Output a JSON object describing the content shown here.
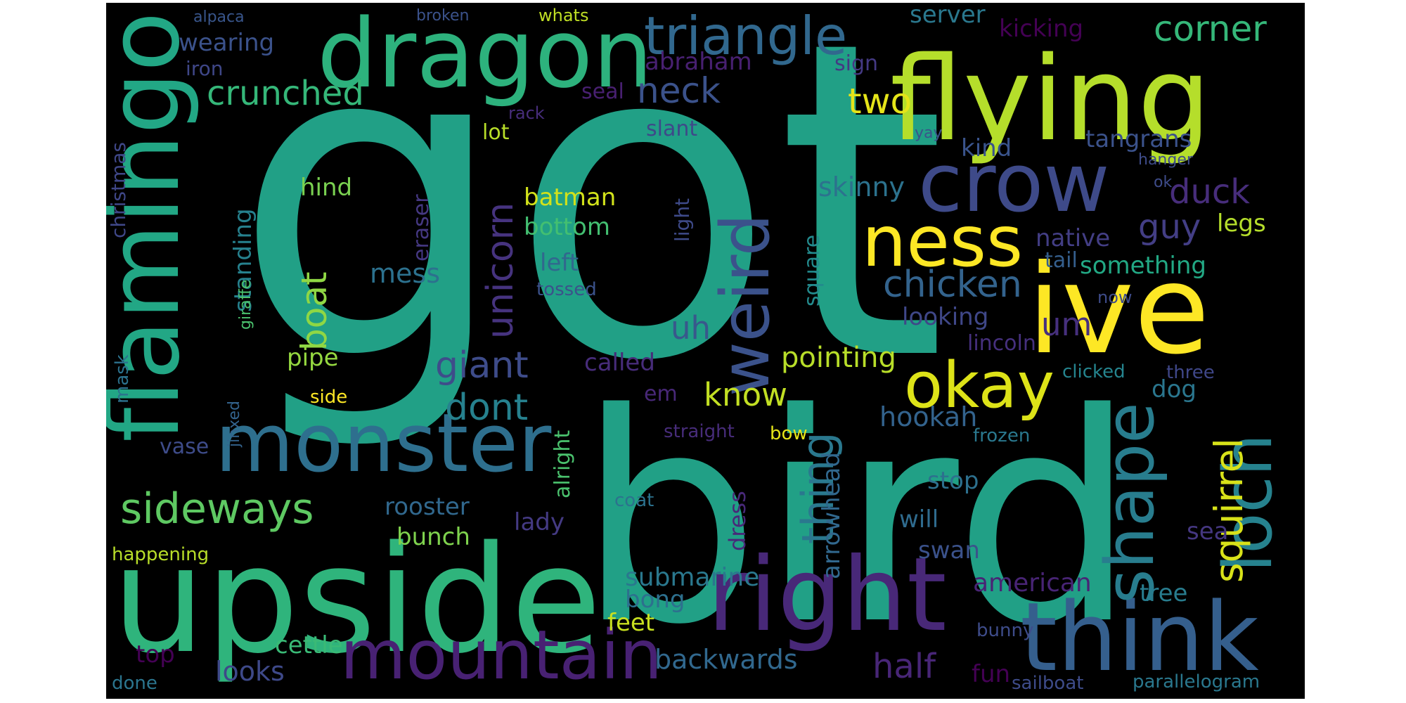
{
  "words": [
    {
      "text": "got",
      "color": "#21a086"
    },
    {
      "text": "bird",
      "color": "#21a086"
    },
    {
      "text": "upside",
      "color": "#2fb47c"
    },
    {
      "text": "flying",
      "color": "#b5de2b"
    },
    {
      "text": "dragon",
      "color": "#2db27d"
    },
    {
      "text": "ive",
      "color": "#fde725"
    },
    {
      "text": "flamingo",
      "color": "#22a785"
    },
    {
      "text": "monster",
      "color": "#2e6f8e"
    },
    {
      "text": "think",
      "color": "#355f8d"
    },
    {
      "text": "right",
      "color": "#482878"
    },
    {
      "text": "crow",
      "color": "#3e4a89"
    },
    {
      "text": "mountain",
      "color": "#482173"
    },
    {
      "text": "ness",
      "color": "#fde725"
    },
    {
      "text": "okay",
      "color": "#dde318"
    },
    {
      "text": "triangle",
      "color": "#31688e"
    },
    {
      "text": "loch",
      "color": "#26828e"
    },
    {
      "text": "weird",
      "color": "#3b528b"
    },
    {
      "text": "shape",
      "color": "#287d8e"
    },
    {
      "text": "sideways",
      "color": "#5ec962"
    },
    {
      "text": "crunched",
      "color": "#35b779"
    },
    {
      "text": "corner",
      "color": "#35b779"
    },
    {
      "text": "giant",
      "color": "#3e4c8a"
    },
    {
      "text": "dont",
      "color": "#26818e"
    },
    {
      "text": "thing",
      "color": "#2a788e"
    },
    {
      "text": "chicken",
      "color": "#33638d"
    },
    {
      "text": "squirrel",
      "color": "#d8e219"
    },
    {
      "text": "half",
      "color": "#482677"
    },
    {
      "text": "two",
      "color": "#e5e419"
    },
    {
      "text": "neck",
      "color": "#3b528b"
    },
    {
      "text": "duck",
      "color": "#472d7b"
    },
    {
      "text": "guy",
      "color": "#433e85"
    },
    {
      "text": "unicorn",
      "color": "#46337f"
    },
    {
      "text": "boat",
      "color": "#8fd744"
    },
    {
      "text": "know",
      "color": "#c2df23"
    },
    {
      "text": "backwards",
      "color": "#31688e"
    },
    {
      "text": "submarine",
      "color": "#2a788e"
    },
    {
      "text": "american",
      "color": "#482475"
    },
    {
      "text": "pointing",
      "color": "#b8de29"
    },
    {
      "text": "hookah",
      "color": "#33638d"
    },
    {
      "text": "skinny",
      "color": "#2c728e"
    },
    {
      "text": "um",
      "color": "#46307e"
    },
    {
      "text": "uh",
      "color": "#38588c"
    },
    {
      "text": "looks",
      "color": "#3e4989"
    },
    {
      "text": "mess",
      "color": "#2c718e"
    },
    {
      "text": "rooster",
      "color": "#31688e"
    },
    {
      "text": "legs",
      "color": "#b5de2b"
    },
    {
      "text": "something",
      "color": "#22a884"
    },
    {
      "text": "looking",
      "color": "#3f4788"
    },
    {
      "text": "tangrans",
      "color": "#3b528b"
    },
    {
      "text": "kicking",
      "color": "#440154"
    },
    {
      "text": "server",
      "color": "#2a788e"
    },
    {
      "text": "wearing",
      "color": "#3b528b"
    },
    {
      "text": "abraham",
      "color": "#482071"
    },
    {
      "text": "hind",
      "color": "#7ad151"
    },
    {
      "text": "bottom",
      "color": "#43bf71"
    },
    {
      "text": "batman",
      "color": "#d2e21b"
    },
    {
      "text": "left",
      "color": "#31688e"
    },
    {
      "text": "pipe",
      "color": "#95d840"
    },
    {
      "text": "called",
      "color": "#472c7a"
    },
    {
      "text": "lady",
      "color": "#443a83"
    },
    {
      "text": "bunch",
      "color": "#7fd34e"
    },
    {
      "text": "feet",
      "color": "#c8e020"
    },
    {
      "text": "bong",
      "color": "#2d708e"
    },
    {
      "text": "fun",
      "color": "#440154"
    },
    {
      "text": "sea",
      "color": "#453781"
    },
    {
      "text": "tree",
      "color": "#287c8e"
    },
    {
      "text": "swan",
      "color": "#3b528b"
    },
    {
      "text": "will",
      "color": "#2f6b8e"
    },
    {
      "text": "stop",
      "color": "#2d708e"
    },
    {
      "text": "dog",
      "color": "#2a768e"
    },
    {
      "text": "native",
      "color": "#433e85"
    },
    {
      "text": "tail",
      "color": "#355f8d"
    },
    {
      "text": "lincoln",
      "color": "#46307e"
    },
    {
      "text": "kind",
      "color": "#3a548c"
    },
    {
      "text": "lot",
      "color": "#b8de29"
    },
    {
      "text": "slant",
      "color": "#3e4989"
    },
    {
      "text": "seal",
      "color": "#482071"
    },
    {
      "text": "sign",
      "color": "#443983"
    },
    {
      "text": "iron",
      "color": "#3f4788"
    },
    {
      "text": "alpaca",
      "color": "#39568c"
    },
    {
      "text": "broken",
      "color": "#3b528b"
    },
    {
      "text": "whats",
      "color": "#c0df25"
    },
    {
      "text": "cettle",
      "color": "#3aba76"
    },
    {
      "text": "top",
      "color": "#440154"
    },
    {
      "text": "em",
      "color": "#482878"
    },
    {
      "text": "alright",
      "color": "#4ac16d"
    },
    {
      "text": "standing",
      "color": "#26818e"
    },
    {
      "text": "eraser",
      "color": "#453882"
    },
    {
      "text": "light",
      "color": "#3e4a89"
    },
    {
      "text": "square",
      "color": "#238a8d"
    },
    {
      "text": "arrowhead",
      "color": "#31688e"
    },
    {
      "text": "dress",
      "color": "#482979"
    },
    {
      "text": "christmas",
      "color": "#3f4788"
    },
    {
      "text": "giraffe",
      "color": "#4ac16d"
    },
    {
      "text": "mask",
      "color": "#2c728e"
    },
    {
      "text": "jinxed",
      "color": "#33638d"
    },
    {
      "text": "vase",
      "color": "#3e4c8a"
    },
    {
      "text": "happening",
      "color": "#b8de29"
    },
    {
      "text": "done",
      "color": "#2b758e"
    },
    {
      "text": "side",
      "color": "#fde725"
    },
    {
      "text": "tossed",
      "color": "#3b528b"
    },
    {
      "text": "rack",
      "color": "#472d7b"
    },
    {
      "text": "coat",
      "color": "#2c728e"
    },
    {
      "text": "straight",
      "color": "#472c7a"
    },
    {
      "text": "bow",
      "color": "#e5e419"
    },
    {
      "text": "frozen",
      "color": "#2a788e"
    },
    {
      "text": "clicked",
      "color": "#25848e"
    },
    {
      "text": "three",
      "color": "#3f4788"
    },
    {
      "text": "now",
      "color": "#3e4c8a"
    },
    {
      "text": "hanger",
      "color": "#3e4c8a"
    },
    {
      "text": "ok",
      "color": "#3e4c8a"
    },
    {
      "text": "yay",
      "color": "#3b528b"
    },
    {
      "text": "bunny",
      "color": "#3e4c8a"
    },
    {
      "text": "sailboat",
      "color": "#3e4c8a"
    },
    {
      "text": "parallelogram",
      "color": "#2a788e"
    }
  ]
}
